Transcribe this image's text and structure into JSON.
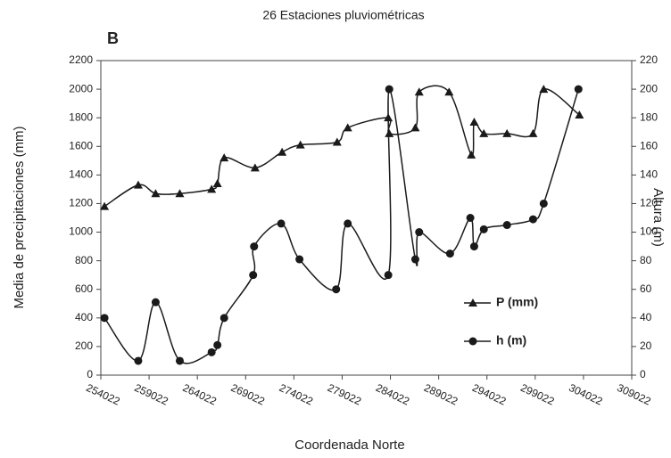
{
  "chart_data": {
    "type": "line",
    "title": "26 Estaciones pluviométricas",
    "panel_label": "B",
    "x_label": "Coordenada Norte",
    "y_label": "Media de precipitaciones (mm)",
    "y2_label": "Altura (m)",
    "xlim": [
      254022,
      309022
    ],
    "xticks": [
      254022,
      259022,
      264022,
      269022,
      274022,
      279022,
      284022,
      289022,
      294022,
      299022,
      304022,
      309022
    ],
    "ylim": [
      0,
      2200
    ],
    "yticks": [
      0,
      200,
      400,
      600,
      800,
      1000,
      1200,
      1400,
      1600,
      1800,
      2000,
      2200
    ],
    "y2lim": [
      0,
      220
    ],
    "y2ticks": [
      0,
      20,
      40,
      60,
      80,
      100,
      120,
      140,
      160,
      180,
      200,
      220
    ],
    "grid": false,
    "smooth": true,
    "series": [
      {
        "name": "P (mm)",
        "color": "#1a1a1a",
        "marker": "triangle",
        "x": [
          254400,
          257900,
          259700,
          262200,
          265500,
          266100,
          266800,
          270000,
          272800,
          274700,
          278500,
          279600,
          283800,
          283900,
          286600,
          287000,
          290100,
          292400,
          292700,
          293700,
          296100,
          298800,
          299900,
          303600
        ],
        "values": [
          1180,
          1330,
          1270,
          1270,
          1300,
          1340,
          1520,
          1450,
          1560,
          1610,
          1630,
          1730,
          1800,
          1690,
          1730,
          1980,
          1980,
          1540,
          1770,
          1690,
          1690,
          1690,
          2000,
          1820
        ]
      },
      {
        "name": "h (m)",
        "color": "#1a1a1a",
        "marker": "circle",
        "axis": "y2",
        "x": [
          254400,
          257900,
          259700,
          262200,
          265500,
          266100,
          266800,
          269800,
          269900,
          272700,
          274600,
          278400,
          279600,
          283800,
          283900,
          286600,
          287000,
          290200,
          292300,
          292700,
          293700,
          296100,
          298800,
          299900,
          303500
        ],
        "values": [
          40,
          10,
          51,
          10,
          16,
          21,
          40,
          70,
          90,
          106,
          81,
          60,
          106,
          70,
          200,
          81,
          100,
          85,
          110,
          90,
          102,
          105,
          109,
          120,
          200
        ]
      }
    ],
    "legend": "lower-right"
  }
}
